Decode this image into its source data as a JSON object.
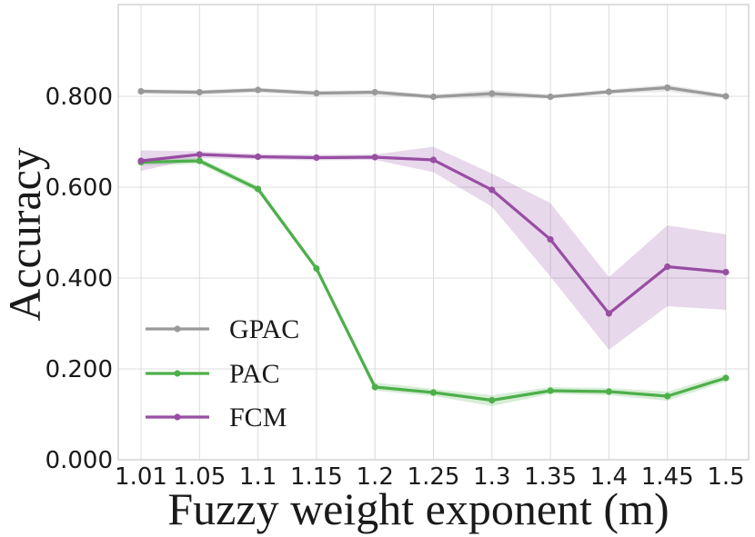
{
  "chart_data": {
    "type": "line",
    "title": "",
    "xlabel": "Fuzzy weight exponent (m)",
    "ylabel": "Accuracy",
    "categories": [
      "1.01",
      "1.05",
      "1.1",
      "1.15",
      "1.2",
      "1.25",
      "1.3",
      "1.35",
      "1.4",
      "1.45",
      "1.5"
    ],
    "ylim": [
      0,
      1.0
    ],
    "yticks": [
      0.0,
      0.2,
      0.4,
      0.6,
      0.8
    ],
    "ytick_labels": [
      "0.000",
      "0.200",
      "0.400",
      "0.600",
      "0.800"
    ],
    "grid": true,
    "legend_position": "lower-left",
    "series": [
      {
        "name": "GPAC",
        "color": "#999999",
        "values": [
          0.811,
          0.809,
          0.814,
          0.807,
          0.809,
          0.799,
          0.806,
          0.799,
          0.81,
          0.819,
          0.8
        ],
        "lower": [
          0.805,
          0.803,
          0.808,
          0.801,
          0.803,
          0.794,
          0.796,
          0.795,
          0.805,
          0.81,
          0.795
        ],
        "upper": [
          0.816,
          0.814,
          0.819,
          0.812,
          0.814,
          0.804,
          0.814,
          0.804,
          0.815,
          0.826,
          0.805
        ]
      },
      {
        "name": "PAC",
        "color": "#4daf4a",
        "values": [
          0.655,
          0.658,
          0.596,
          0.421,
          0.16,
          0.148,
          0.131,
          0.152,
          0.15,
          0.14,
          0.18
        ],
        "lower": [
          0.648,
          0.651,
          0.589,
          0.415,
          0.152,
          0.14,
          0.118,
          0.145,
          0.142,
          0.13,
          0.172
        ],
        "upper": [
          0.662,
          0.665,
          0.603,
          0.427,
          0.17,
          0.156,
          0.142,
          0.16,
          0.158,
          0.15,
          0.188
        ]
      },
      {
        "name": "FCM",
        "color": "#984ea3",
        "values": [
          0.658,
          0.672,
          0.667,
          0.665,
          0.666,
          0.66,
          0.594,
          0.485,
          0.322,
          0.425,
          0.413
        ],
        "lower": [
          0.636,
          0.664,
          0.661,
          0.659,
          0.66,
          0.633,
          0.557,
          0.403,
          0.242,
          0.338,
          0.33
        ],
        "upper": [
          0.681,
          0.679,
          0.673,
          0.671,
          0.672,
          0.689,
          0.63,
          0.565,
          0.402,
          0.516,
          0.496
        ]
      }
    ]
  }
}
